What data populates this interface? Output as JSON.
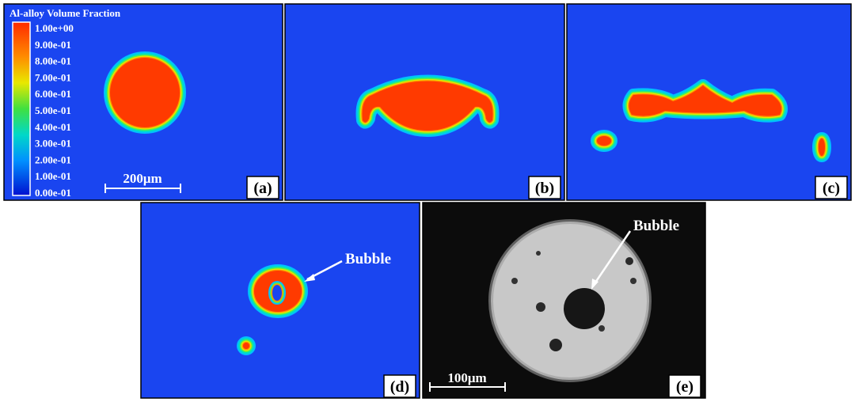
{
  "colorbar": {
    "title": "Al-alloy Volume Fraction",
    "labels": [
      "1.00e+00",
      "9.00e-01",
      "8.00e-01",
      "7.00e-01",
      "6.00e-01",
      "5.00e-01",
      "4.00e-01",
      "3.00e-01",
      "2.00e-01",
      "1.00e-01",
      "0.00e-01"
    ]
  },
  "panels": [
    {
      "label": "(a)",
      "scale_bar": "200μm"
    },
    {
      "label": "(b)"
    },
    {
      "label": "(c)"
    },
    {
      "label": "(d)",
      "annotation": "Bubble"
    },
    {
      "label": "(e)",
      "annotation": "Bubble",
      "scale_bar": "100μm"
    }
  ]
}
